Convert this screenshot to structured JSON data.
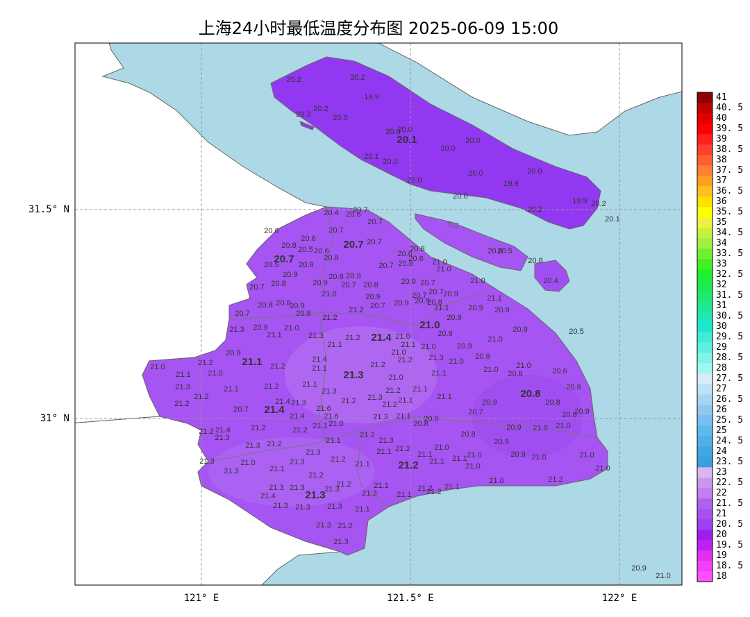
{
  "map": {
    "title": "上海24小时最低温度分布图 2025-06-09 15:00",
    "lat_labels": [
      "31.5° N",
      "31° N"
    ],
    "lon_labels": [
      "121° E",
      "121.5° E",
      "122° E"
    ],
    "stations": [
      "20.2",
      "20.2",
      "19.9",
      "20.3",
      "20.2",
      "20.0",
      "20.0",
      "20.0",
      "20.0",
      "20.0",
      "20.1",
      "20.0",
      "20.0",
      "20.0",
      "20.0",
      "19.9",
      "20.0",
      "20.2",
      "19.9",
      "20.2",
      "20.1",
      "20.6",
      "20.5",
      "20.8",
      "20.4",
      "20.5",
      "20.6",
      "20.6",
      "20.8",
      "20.5",
      "20.6",
      "20.8",
      "20.5",
      "20.8",
      "20.9",
      "20.8",
      "20.7",
      "20.9",
      "20.8",
      "20.9",
      "20.7",
      "20.8",
      "20.7",
      "20.7",
      "20.7",
      "20.6",
      "20.4",
      "20.7",
      "20.8",
      "20.6",
      "20.6",
      "20.8",
      "20.7",
      "21.0",
      "21.0",
      "20.9",
      "20.7",
      "21.0",
      "20.7",
      "20.7",
      "20.9",
      "20.9",
      "20.8",
      "21.1",
      "21.1",
      "20.9",
      "20.9",
      "20.9",
      "20.9",
      "20.7",
      "20.9",
      "21.2",
      "21.0",
      "20.8",
      "20.8",
      "20.9",
      "20.8",
      "20.7",
      "21.2",
      "21.3",
      "20.9",
      "21.0",
      "21.1",
      "21.3",
      "21.2",
      "21.1",
      "21.0",
      "21.1",
      "21.0",
      "20.9",
      "20.9",
      "21.0",
      "20.9",
      "20.9",
      "21.2",
      "21.0",
      "21.0",
      "21.2",
      "21.4",
      "21.1",
      "21.2",
      "21.0",
      "21.2",
      "21.3",
      "21.0",
      "20.9",
      "21.0",
      "21.0",
      "20.8",
      "20.6",
      "21.1",
      "21.3",
      "21.2",
      "21.2",
      "21.1",
      "21.2",
      "21.1",
      "21.3",
      "21.2",
      "21.0",
      "21.1",
      "21.1",
      "21.1",
      "20.8",
      "20.8",
      "20.9",
      "20.7",
      "20.8",
      "20.9",
      "20.7",
      "21.4",
      "21.3",
      "21.2",
      "21.3",
      "21.2",
      "21.1",
      "21.6",
      "21.6",
      "21.4",
      "21.3",
      "21.1",
      "20.8",
      "20.9",
      "21.4",
      "21.2",
      "21.3",
      "21.2",
      "21.2",
      "21.1",
      "21.0",
      "20.9",
      "21.0",
      "21.0",
      "20.8",
      "20.9",
      "21.0",
      "21.1",
      "21.3",
      "21.2",
      "21.3",
      "21.2",
      "21.3",
      "21.1",
      "21.2",
      "21.1",
      "21.1",
      "21.1",
      "21.0",
      "21.0",
      "20.9",
      "21.0",
      "21.0",
      "21.0",
      "21.3",
      "21.0",
      "21.1",
      "21.3",
      "21.2",
      "21.1",
      "21.3",
      "21.2",
      "21.0",
      "21.2",
      "21.3",
      "21.3",
      "21.3",
      "21.2",
      "21.1",
      "21.3",
      "21.2",
      "21.2",
      "21.1",
      "21.1",
      "21.4",
      "21.3",
      "21.3",
      "21.3",
      "21.1",
      "21.3",
      "21.2",
      "21.3",
      "20.9",
      "21.0"
    ],
    "district_labels": [
      "20.1",
      "20.7",
      "20.7",
      "21.0",
      "21.4",
      "21.1",
      "21.3",
      "20.8",
      "21.4",
      "21.2",
      "21.3"
    ],
    "colorbar_ticks": [
      18,
      {
        "value": 18.5,
        "label": "18. 5"
      },
      19,
      {
        "value": 19.5,
        "label": "19. 5"
      },
      20,
      {
        "value": 20.5,
        "label": "20. 5"
      },
      21,
      {
        "value": 21.5,
        "label": "21. 5"
      },
      22,
      {
        "value": 22.5,
        "label": "22. 5"
      },
      23,
      {
        "value": 23.5,
        "label": "23. 5"
      },
      24,
      {
        "value": 24.5,
        "label": "24. 5"
      },
      25,
      {
        "value": 25.5,
        "label": "25. 5"
      },
      26,
      {
        "value": 26.5,
        "label": "26. 5"
      },
      27,
      {
        "value": 27.5,
        "label": "27. 5"
      },
      28,
      {
        "value": 28.5,
        "label": "28. 5"
      },
      29,
      {
        "value": 29.5,
        "label": "29. 5"
      },
      30,
      {
        "value": 30.5,
        "label": "30. 5"
      },
      31,
      {
        "value": 31.5,
        "label": "31. 5"
      },
      32,
      {
        "value": 32.5,
        "label": "32. 5"
      },
      33,
      {
        "value": 33.5,
        "label": "33. 5"
      },
      34,
      {
        "value": 34.5,
        "label": "34. 5"
      },
      35,
      {
        "value": 35.5,
        "label": "35. 5"
      },
      36,
      {
        "value": 36.5,
        "label": "36. 5"
      },
      37,
      {
        "value": 37.5,
        "label": "37. 5"
      },
      38,
      {
        "value": 38.5,
        "label": "38. 5"
      },
      39,
      {
        "value": 39.5,
        "label": "39. 5"
      },
      40,
      {
        "value": 40.5,
        "label": "40. 5"
      },
      41
    ]
  }
}
